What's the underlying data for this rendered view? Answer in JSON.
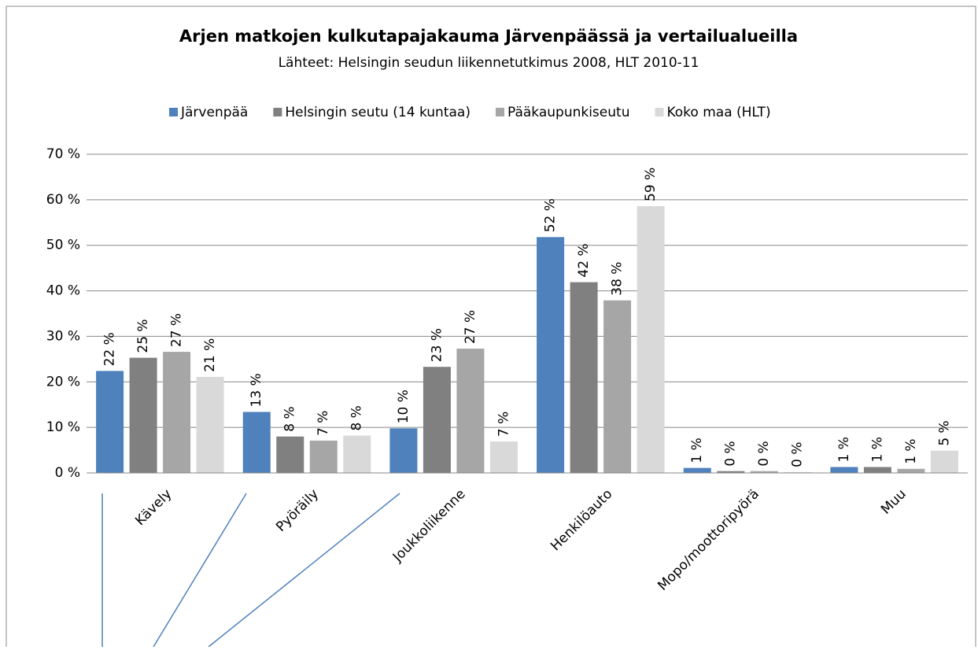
{
  "chart_data": {
    "type": "bar",
    "title": "Arjen matkojen kulkutapajakauma Järvenpäässä ja vertailualueilla",
    "subtitle": "Lähteet: Helsingin seudun liikennetutkimus 2008, HLT 2010-11",
    "categories": [
      "Kävely",
      "Pyöräily",
      "Joukkoliikenne",
      "Henkilöauto",
      "Mopo/moottoripyörä",
      "Muu"
    ],
    "series": [
      {
        "name": "Järvenpää",
        "color": "#4f81bd",
        "values": [
          22.4,
          13.4,
          9.8,
          51.8,
          1.1,
          1.3
        ],
        "value_labels": [
          "22 %",
          "13 %",
          "10 %",
          "52 %",
          "1 %",
          "1 %"
        ]
      },
      {
        "name": "Helsingin seutu (14 kuntaa)",
        "color": "#808080",
        "values": [
          25.3,
          8.0,
          23.3,
          41.9,
          0.4,
          1.3
        ],
        "value_labels": [
          "25 %",
          "8 %",
          "23 %",
          "42 %",
          "0 %",
          "1 %"
        ]
      },
      {
        "name": "Pääkaupunkiseutu",
        "color": "#a6a6a6",
        "values": [
          26.6,
          7.1,
          27.3,
          37.9,
          0.4,
          0.9
        ],
        "value_labels": [
          "27 %",
          "7 %",
          "27 %",
          "38 %",
          "0 %",
          "1 %"
        ]
      },
      {
        "name": "Koko maa (HLT)",
        "color": "#d9d9d9",
        "values": [
          21.1,
          8.2,
          6.9,
          58.6,
          0.2,
          4.9
        ],
        "value_labels": [
          "21 %",
          "8 %",
          "7 %",
          "59 %",
          "0 %",
          "5 %"
        ]
      }
    ],
    "ylim": [
      0,
      70
    ],
    "yticks": [
      {
        "value": 0,
        "label": "0 %"
      },
      {
        "value": 10,
        "label": "10 %"
      },
      {
        "value": 20,
        "label": "20 %"
      },
      {
        "value": 30,
        "label": "30 %"
      },
      {
        "value": 40,
        "label": "40 %"
      },
      {
        "value": 50,
        "label": "50 %"
      },
      {
        "value": 60,
        "label": "60 %"
      },
      {
        "value": 70,
        "label": "70 %"
      }
    ],
    "grid": true
  }
}
